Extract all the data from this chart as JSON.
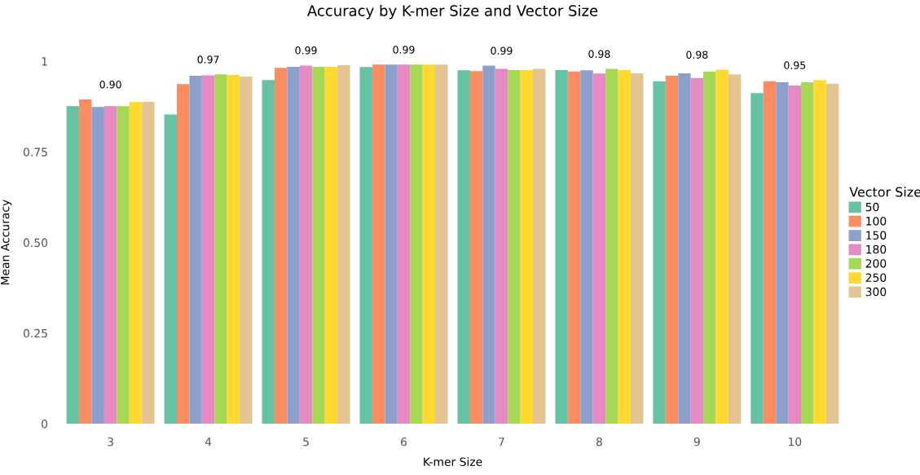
{
  "chart_data": {
    "type": "bar",
    "title": "Accuracy by K-mer Size and Vector Size",
    "xlabel": "K-mer Size",
    "ylabel": "Mean Accuracy",
    "legend_title": "Vector Size",
    "categories": [
      "3",
      "4",
      "5",
      "6",
      "7",
      "8",
      "9",
      "10"
    ],
    "series": [
      {
        "name": "50",
        "color": "#66c2a5",
        "values": [
          0.876,
          0.853,
          0.948,
          0.984,
          0.975,
          0.976,
          0.945,
          0.912
        ]
      },
      {
        "name": "100",
        "color": "#fc8d62",
        "values": [
          0.895,
          0.937,
          0.982,
          0.991,
          0.973,
          0.972,
          0.96,
          0.945
        ]
      },
      {
        "name": "150",
        "color": "#8da0cb",
        "values": [
          0.874,
          0.96,
          0.985,
          0.991,
          0.988,
          0.975,
          0.967,
          0.942
        ]
      },
      {
        "name": "180",
        "color": "#e78ac3",
        "values": [
          0.876,
          0.961,
          0.988,
          0.991,
          0.979,
          0.966,
          0.954,
          0.933
        ]
      },
      {
        "name": "200",
        "color": "#a6d854",
        "values": [
          0.876,
          0.964,
          0.985,
          0.991,
          0.976,
          0.979,
          0.972,
          0.942
        ]
      },
      {
        "name": "250",
        "color": "#ffd92f",
        "values": [
          0.888,
          0.962,
          0.985,
          0.991,
          0.976,
          0.976,
          0.977,
          0.948
        ]
      },
      {
        "name": "300",
        "color": "#e5c494",
        "values": [
          0.888,
          0.958,
          0.989,
          0.991,
          0.979,
          0.967,
          0.964,
          0.938
        ]
      }
    ],
    "annotations": [
      "0.90",
      "0.97",
      "0.99",
      "0.99",
      "0.99",
      "0.98",
      "0.98",
      "0.95"
    ],
    "ylim": [
      0,
      1
    ],
    "yticks": [
      0,
      {
        "value": 0.25,
        "label": "0.25"
      },
      {
        "value": 0.5,
        "label": "0.50"
      },
      {
        "value": 0.75,
        "label": "0.75"
      },
      1
    ],
    "grid": false,
    "legend": "right"
  }
}
